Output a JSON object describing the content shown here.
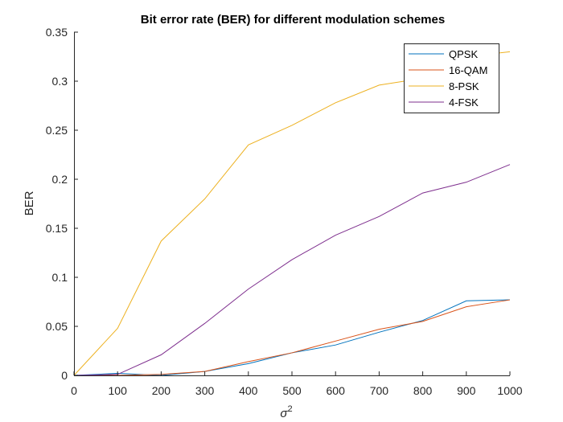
{
  "chart_data": {
    "type": "line",
    "title": "Bit error rate (BER) for different modulation schemes",
    "xlabel_base": "σ",
    "xlabel_sup": "2",
    "ylabel": "BER",
    "xlim": [
      0,
      1000
    ],
    "ylim": [
      0,
      0.35
    ],
    "xticks": [
      0,
      100,
      200,
      300,
      400,
      500,
      600,
      700,
      800,
      900,
      1000
    ],
    "yticks": [
      0,
      0.05,
      0.1,
      0.15,
      0.2,
      0.25,
      0.3,
      0.35
    ],
    "xtick_labels": [
      "0",
      "100",
      "200",
      "300",
      "400",
      "500",
      "600",
      "700",
      "800",
      "900",
      "1000"
    ],
    "ytick_labels": [
      "0",
      "0.05",
      "0.1",
      "0.15",
      "0.2",
      "0.25",
      "0.3",
      "0.35"
    ],
    "grid": false,
    "legend_position": "top-right",
    "x": [
      0,
      100,
      200,
      300,
      400,
      500,
      600,
      700,
      800,
      900,
      1000
    ],
    "series": [
      {
        "name": "QPSK",
        "color": "#0072BD",
        "values": [
          0,
          0.002,
          0,
          0.004,
          0.012,
          0.023,
          0.031,
          0.044,
          0.056,
          0.076,
          0.077
        ]
      },
      {
        "name": "16-QAM",
        "color": "#D95319",
        "values": [
          0,
          0,
          0.001,
          0.004,
          0.014,
          0.023,
          0.035,
          0.047,
          0.055,
          0.07,
          0.077
        ]
      },
      {
        "name": "8-PSK",
        "color": "#EDB120",
        "values": [
          0,
          0.048,
          0.137,
          0.18,
          0.235,
          0.255,
          0.278,
          0.296,
          0.303,
          0.325,
          0.33
        ]
      },
      {
        "name": "4-FSK",
        "color": "#7E2F8E",
        "values": [
          0,
          0.001,
          0.021,
          0.053,
          0.088,
          0.118,
          0.143,
          0.162,
          0.186,
          0.197,
          0.215
        ]
      }
    ]
  }
}
